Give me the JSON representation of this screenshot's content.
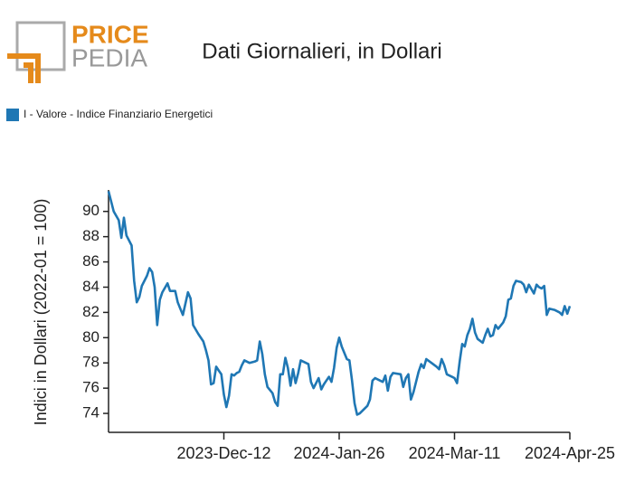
{
  "logo": {
    "line1": "PRICE",
    "line2": "PEDIA"
  },
  "chart_data": {
    "type": "line",
    "title": "Dati Giornalieri, in Dollari",
    "ylabel": "Indici in Dollari (2022-01 = 100)",
    "legend": "top-left",
    "series": [
      {
        "name": "I - Valore - Indice Finanziario Energetici",
        "color": "#1f77b4",
        "x": [
          "2023-10-28",
          "2023-10-30",
          "2023-11-01",
          "2023-11-02",
          "2023-11-03",
          "2023-11-04",
          "2023-11-06",
          "2023-11-07",
          "2023-11-08",
          "2023-11-09",
          "2023-11-10",
          "2023-11-12",
          "2023-11-13",
          "2023-11-14",
          "2023-11-15",
          "2023-11-16",
          "2023-11-17",
          "2023-11-18",
          "2023-11-20",
          "2023-11-21",
          "2023-11-23",
          "2023-11-24",
          "2023-11-25",
          "2023-11-26",
          "2023-11-28",
          "2023-11-29",
          "2023-11-30",
          "2023-12-02",
          "2023-12-04",
          "2023-12-05",
          "2023-12-06",
          "2023-12-07",
          "2023-12-08",
          "2023-12-09",
          "2023-12-10",
          "2023-12-11",
          "2023-12-12",
          "2023-12-13",
          "2023-12-14",
          "2023-12-15",
          "2023-12-16",
          "2023-12-17",
          "2023-12-18",
          "2023-12-19",
          "2023-12-20",
          "2023-12-22",
          "2023-12-24",
          "2023-12-25",
          "2023-12-26",
          "2023-12-27",
          "2023-12-28",
          "2023-12-29",
          "2023-12-31",
          "2024-01-01",
          "2024-01-02",
          "2024-01-03",
          "2024-01-04",
          "2024-01-05",
          "2024-01-06",
          "2024-01-07",
          "2024-01-08",
          "2024-01-09",
          "2024-01-10",
          "2024-01-11",
          "2024-01-13",
          "2024-01-14",
          "2024-01-15",
          "2024-01-16",
          "2024-01-18",
          "2024-01-19",
          "2024-01-20",
          "2024-01-21",
          "2024-01-22",
          "2024-01-23",
          "2024-01-24",
          "2024-01-25",
          "2024-01-26",
          "2024-01-27",
          "2024-01-29",
          "2024-01-30",
          "2024-01-31",
          "2024-02-01",
          "2024-02-02",
          "2024-02-03",
          "2024-02-04",
          "2024-02-06",
          "2024-02-07",
          "2024-02-08",
          "2024-02-09",
          "2024-02-11",
          "2024-02-12",
          "2024-02-13",
          "2024-02-14",
          "2024-02-15",
          "2024-02-16",
          "2024-02-19",
          "2024-02-20",
          "2024-02-21",
          "2024-02-22",
          "2024-02-23",
          "2024-02-24",
          "2024-02-25",
          "2024-02-26",
          "2024-02-27",
          "2024-02-28",
          "2024-02-29",
          "2024-03-02",
          "2024-03-04",
          "2024-03-05",
          "2024-03-06",
          "2024-03-07",
          "2024-03-08",
          "2024-03-10",
          "2024-03-11",
          "2024-03-12",
          "2024-03-13",
          "2024-03-14",
          "2024-03-15",
          "2024-03-16",
          "2024-03-17",
          "2024-03-18",
          "2024-03-19",
          "2024-03-20",
          "2024-03-22",
          "2024-03-23",
          "2024-03-24",
          "2024-03-25",
          "2024-03-26",
          "2024-03-27",
          "2024-03-28",
          "2024-03-30",
          "2024-03-31",
          "2024-04-01",
          "2024-04-02",
          "2024-04-03",
          "2024-04-04",
          "2024-04-06",
          "2024-04-07",
          "2024-04-08",
          "2024-04-09",
          "2024-04-11",
          "2024-04-12",
          "2024-04-13",
          "2024-04-14",
          "2024-04-15",
          "2024-04-16",
          "2024-04-17",
          "2024-04-19",
          "2024-04-21",
          "2024-04-22",
          "2024-04-23",
          "2024-04-24",
          "2024-04-25"
        ],
        "values": [
          91.6,
          90,
          89.3,
          87.9,
          89.5,
          88.1,
          87.3,
          84.5,
          82.8,
          83.2,
          84.1,
          84.9,
          85.5,
          85.2,
          84,
          81,
          83,
          83.6,
          84.3,
          83.7,
          83.7,
          82.8,
          82.3,
          81.8,
          83.6,
          83.1,
          81,
          80.3,
          79.7,
          79,
          78.2,
          76.3,
          76.4,
          77.7,
          77.4,
          77.1,
          75.5,
          74.5,
          75.4,
          77.1,
          77,
          77.2,
          77.3,
          77.8,
          78.2,
          78,
          78.1,
          78.2,
          79.7,
          78.7,
          77.1,
          76.1,
          75.6,
          74.9,
          74.6,
          77.1,
          77.1,
          78.4,
          77.6,
          76.2,
          77.5,
          76.4,
          77.2,
          78.2,
          78,
          77.9,
          76.5,
          76,
          76.8,
          75.9,
          76.3,
          76.6,
          76.9,
          76.5,
          77.6,
          79.2,
          80,
          79.3,
          78.3,
          78.2,
          76.6,
          74.8,
          73.9,
          74,
          74.2,
          74.6,
          75.1,
          76.6,
          76.8,
          76.6,
          76.5,
          77,
          75.8,
          76.9,
          77.2,
          77.1,
          76.1,
          76.8,
          77.1,
          75.1,
          75.7,
          76.5,
          77.3,
          77.9,
          77.6,
          78.3,
          78,
          77.7,
          77.5,
          78.3,
          77.8,
          77.1,
          76.9,
          76.8,
          76.4,
          78.1,
          79.5,
          79.3,
          80.2,
          80.7,
          81.5,
          80.4,
          79.9,
          79.6,
          80.2,
          80.7,
          80.1,
          80.2,
          81,
          80.7,
          81.2,
          81.7,
          83,
          83.1,
          84.1,
          84.5,
          84.4,
          84.2,
          83.6,
          84.2,
          83.5,
          84.2,
          84,
          83.9,
          84.1,
          81.8,
          82.3,
          82.2,
          82,
          81.8,
          82.5,
          81.9,
          82.5
        ]
      }
    ],
    "xlim": [
      "2023-10-28",
      "2024-04-25"
    ],
    "xticks": [
      {
        "value": "2023-12-12",
        "label": "2023-Dec-12"
      },
      {
        "value": "2024-01-26",
        "label": "2024-Jan-26"
      },
      {
        "value": "2024-03-11",
        "label": "2024-Mar-11"
      },
      {
        "value": "2024-04-25",
        "label": "2024-Apr-25"
      }
    ],
    "ylim": [
      72.5,
      91.7
    ],
    "yticks": [
      74,
      76,
      78,
      80,
      82,
      84,
      86,
      88,
      90
    ]
  }
}
